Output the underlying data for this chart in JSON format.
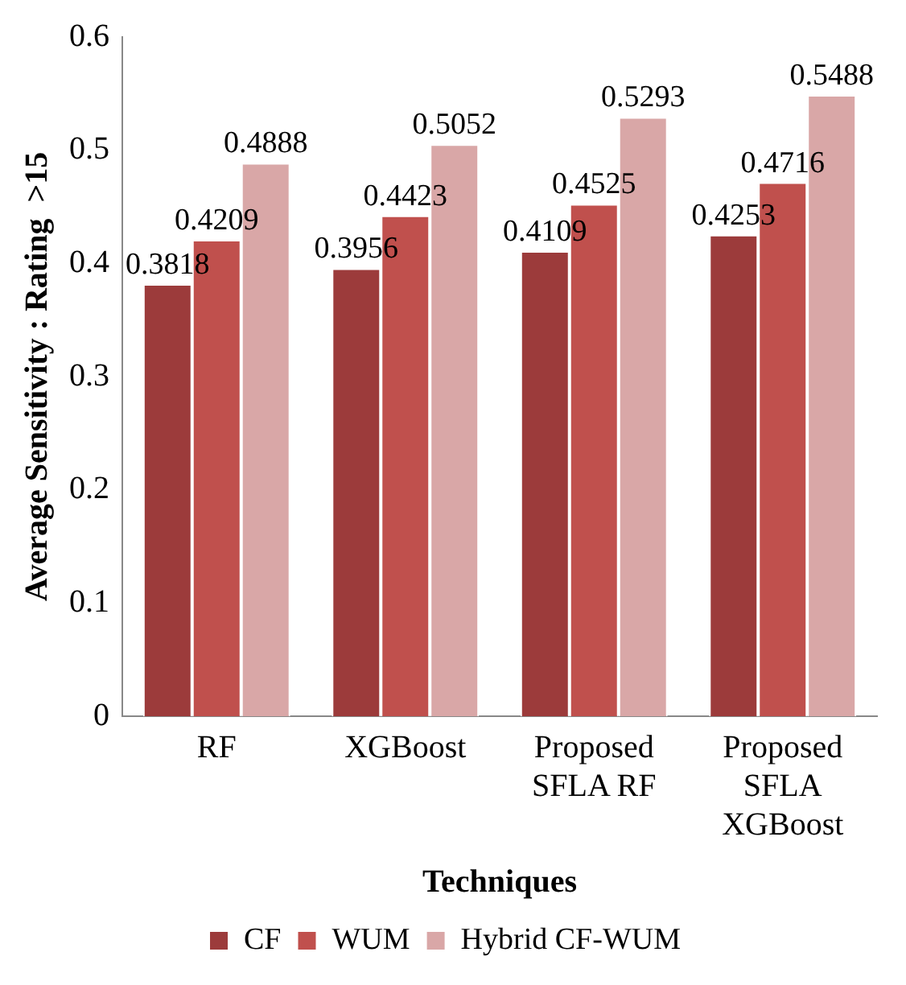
{
  "chart_data": {
    "type": "bar",
    "xlabel": "Techniques",
    "ylabel": "Average Sensitivity : Rating  >15",
    "categories": [
      "RF",
      "XGBoost",
      "Proposed SFLA RF",
      "Proposed SFLA XGBoost"
    ],
    "series": [
      {
        "name": "CF",
        "color": "#9c3b3b",
        "values": [
          0.3818,
          0.3956,
          0.4109,
          0.4253
        ]
      },
      {
        "name": "WUM",
        "color": "#c0504d",
        "values": [
          0.4209,
          0.4423,
          0.4525,
          0.4716
        ]
      },
      {
        "name": "Hybrid CF-WUM",
        "color": "#d9a7a7",
        "values": [
          0.4888,
          0.5052,
          0.5293,
          0.5488
        ]
      }
    ],
    "ylim": [
      0,
      0.6
    ],
    "yticks": [
      0,
      0.1,
      0.2,
      0.3,
      0.4,
      0.5,
      0.6
    ],
    "grid": false,
    "legend": "bottom",
    "data_labels": true
  }
}
